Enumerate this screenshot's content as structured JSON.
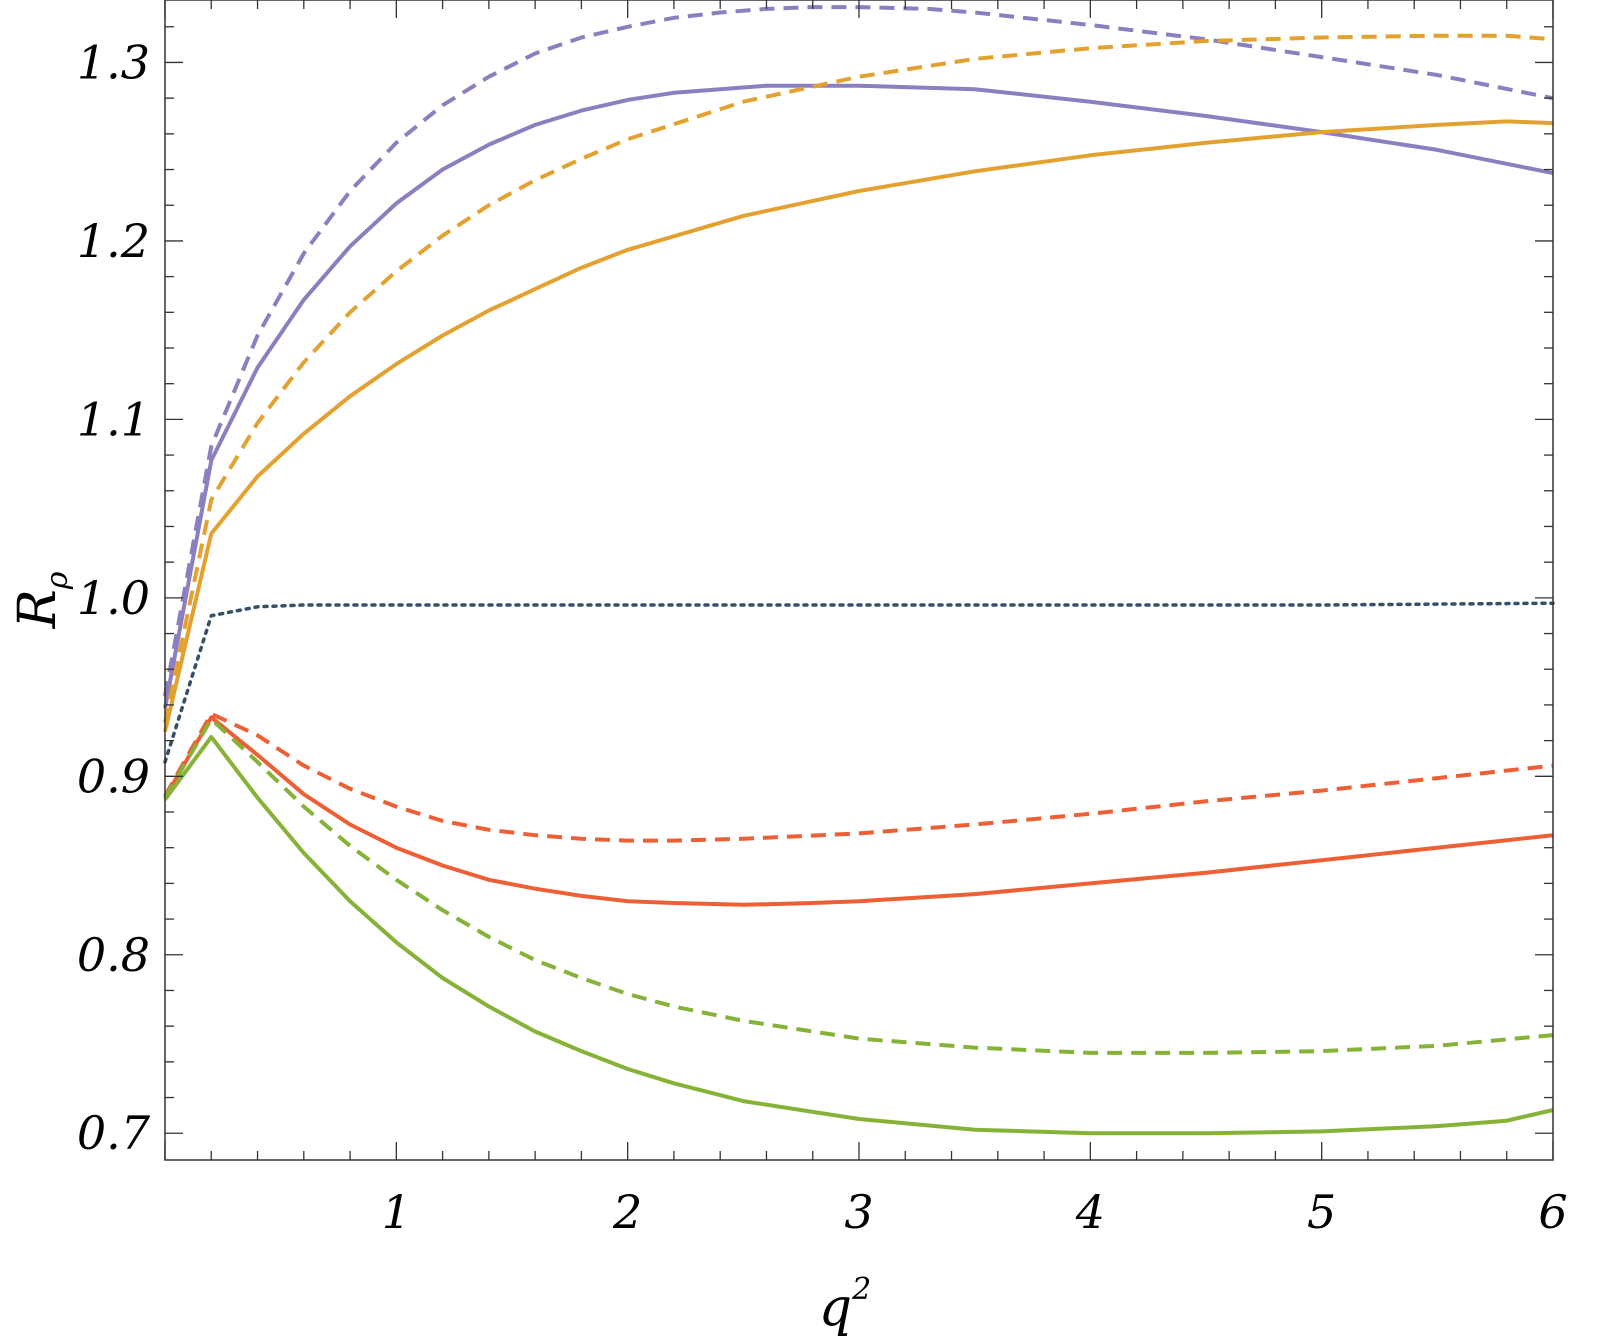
{
  "chart_data": {
    "type": "line",
    "title": "",
    "xlabel": "q",
    "xlabel_superscript": "2",
    "ylabel": "R",
    "ylabel_subscript": "ρ",
    "xlim": [
      0.0,
      6.0
    ],
    "ylim": [
      0.685,
      1.335
    ],
    "x_ticks": [
      1,
      2,
      3,
      4,
      5,
      6
    ],
    "x_tick_labels": [
      "1",
      "2",
      "3",
      "4",
      "5",
      "6"
    ],
    "y_ticks": [
      0.7,
      0.8,
      0.9,
      1.0,
      1.1,
      1.2,
      1.3
    ],
    "y_tick_labels": [
      "0.7",
      "0.8",
      "0.9",
      "1.0",
      "1.1",
      "1.2",
      "1.3"
    ],
    "grid": false,
    "legend": "none",
    "series": [
      {
        "color": "#8b7fbf",
        "style": "solid",
        "x": [
          0.0,
          0.2,
          0.4,
          0.6,
          0.8,
          1.0,
          1.2,
          1.4,
          1.6,
          1.8,
          2.0,
          2.2,
          2.4,
          2.6,
          2.8,
          3.0,
          3.5,
          4.0,
          4.5,
          5.0,
          5.5,
          6.0
        ],
        "y": [
          0.938,
          1.077,
          1.129,
          1.167,
          1.197,
          1.221,
          1.24,
          1.254,
          1.265,
          1.273,
          1.279,
          1.283,
          1.285,
          1.287,
          1.287,
          1.287,
          1.285,
          1.278,
          1.27,
          1.261,
          1.251,
          1.238
        ]
      },
      {
        "color": "#8b7fbf",
        "style": "dashed",
        "x": [
          0.0,
          0.2,
          0.4,
          0.6,
          0.8,
          1.0,
          1.2,
          1.4,
          1.6,
          1.8,
          2.0,
          2.2,
          2.4,
          2.6,
          2.8,
          3.0,
          3.3,
          3.5,
          4.0,
          4.5,
          5.0,
          5.5,
          6.0
        ],
        "y": [
          0.945,
          1.085,
          1.147,
          1.193,
          1.228,
          1.255,
          1.276,
          1.292,
          1.305,
          1.314,
          1.32,
          1.325,
          1.328,
          1.33,
          1.331,
          1.331,
          1.33,
          1.328,
          1.321,
          1.313,
          1.303,
          1.293,
          1.28
        ]
      },
      {
        "color": "#e3a12f",
        "style": "solid",
        "x": [
          0.0,
          0.2,
          0.4,
          0.6,
          0.8,
          1.0,
          1.2,
          1.4,
          1.6,
          1.8,
          2.0,
          2.5,
          3.0,
          3.5,
          4.0,
          4.5,
          5.0,
          5.5,
          5.8,
          6.0
        ],
        "y": [
          0.925,
          1.036,
          1.068,
          1.092,
          1.113,
          1.131,
          1.147,
          1.161,
          1.173,
          1.185,
          1.195,
          1.214,
          1.228,
          1.239,
          1.248,
          1.255,
          1.261,
          1.265,
          1.267,
          1.266
        ]
      },
      {
        "color": "#e3a12f",
        "style": "dashed",
        "x": [
          0.0,
          0.2,
          0.4,
          0.6,
          0.8,
          1.0,
          1.2,
          1.4,
          1.6,
          1.8,
          2.0,
          2.5,
          3.0,
          3.5,
          4.0,
          4.5,
          5.0,
          5.5,
          5.8,
          6.0
        ],
        "y": [
          0.93,
          1.055,
          1.098,
          1.132,
          1.16,
          1.183,
          1.203,
          1.22,
          1.234,
          1.246,
          1.257,
          1.278,
          1.292,
          1.302,
          1.308,
          1.312,
          1.314,
          1.315,
          1.315,
          1.313
        ]
      },
      {
        "color": "#34506b",
        "style": "dotted",
        "x": [
          0.0,
          0.2,
          0.4,
          0.6,
          1.0,
          2.0,
          3.0,
          4.0,
          5.0,
          6.0
        ],
        "y": [
          0.908,
          0.99,
          0.995,
          0.996,
          0.996,
          0.996,
          0.996,
          0.996,
          0.996,
          0.997
        ]
      },
      {
        "color": "#ed5f35",
        "style": "solid",
        "x": [
          0.0,
          0.2,
          0.4,
          0.6,
          0.8,
          1.0,
          1.2,
          1.4,
          1.6,
          1.8,
          2.0,
          2.2,
          2.5,
          2.8,
          3.0,
          3.5,
          4.0,
          4.5,
          5.0,
          5.5,
          6.0
        ],
        "y": [
          0.888,
          0.933,
          0.912,
          0.89,
          0.873,
          0.86,
          0.85,
          0.842,
          0.837,
          0.833,
          0.83,
          0.829,
          0.828,
          0.829,
          0.83,
          0.834,
          0.84,
          0.846,
          0.853,
          0.86,
          0.867
        ]
      },
      {
        "color": "#ed5f35",
        "style": "dashed",
        "x": [
          0.0,
          0.2,
          0.4,
          0.6,
          0.8,
          1.0,
          1.2,
          1.4,
          1.6,
          1.8,
          2.0,
          2.2,
          2.5,
          3.0,
          3.5,
          4.0,
          4.5,
          5.0,
          5.5,
          6.0
        ],
        "y": [
          0.889,
          0.935,
          0.923,
          0.906,
          0.893,
          0.883,
          0.875,
          0.87,
          0.867,
          0.865,
          0.864,
          0.864,
          0.865,
          0.868,
          0.873,
          0.879,
          0.886,
          0.892,
          0.899,
          0.906
        ]
      },
      {
        "color": "#86b337",
        "style": "solid",
        "x": [
          0.0,
          0.2,
          0.4,
          0.6,
          0.8,
          1.0,
          1.2,
          1.4,
          1.6,
          1.8,
          2.0,
          2.2,
          2.5,
          3.0,
          3.5,
          4.0,
          4.5,
          5.0,
          5.5,
          5.8,
          6.0
        ],
        "y": [
          0.887,
          0.922,
          0.888,
          0.857,
          0.83,
          0.807,
          0.787,
          0.771,
          0.757,
          0.746,
          0.736,
          0.728,
          0.718,
          0.708,
          0.702,
          0.7,
          0.7,
          0.701,
          0.704,
          0.707,
          0.713
        ]
      },
      {
        "color": "#86b337",
        "style": "dashed",
        "x": [
          0.0,
          0.2,
          0.4,
          0.6,
          0.8,
          1.0,
          1.2,
          1.4,
          1.6,
          1.8,
          2.0,
          2.2,
          2.5,
          3.0,
          3.5,
          4.0,
          4.5,
          5.0,
          5.5,
          6.0
        ],
        "y": [
          0.888,
          0.932,
          0.908,
          0.883,
          0.861,
          0.842,
          0.825,
          0.81,
          0.797,
          0.787,
          0.778,
          0.771,
          0.763,
          0.753,
          0.748,
          0.745,
          0.745,
          0.746,
          0.749,
          0.755
        ]
      }
    ]
  }
}
